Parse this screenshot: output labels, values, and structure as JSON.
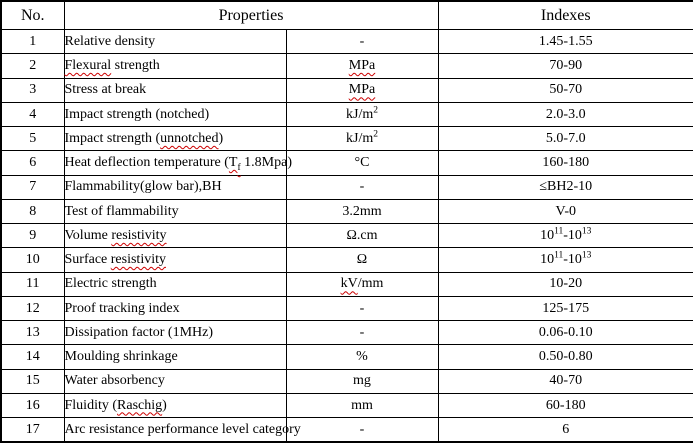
{
  "table": {
    "headers": {
      "no": "No.",
      "properties": "Properties",
      "indexes": "Indexes"
    },
    "rows": [
      {
        "no": "1",
        "property": [
          {
            "t": "Relative density"
          }
        ],
        "unit": [
          {
            "t": "-"
          }
        ],
        "index": [
          {
            "t": "1.45-1.55"
          }
        ]
      },
      {
        "no": "2",
        "property": [
          {
            "t": "Flexural",
            "s": "sq"
          },
          {
            "t": " strength"
          }
        ],
        "unit": [
          {
            "t": "MPa",
            "s": "sq"
          }
        ],
        "index": [
          {
            "t": "70-90"
          }
        ]
      },
      {
        "no": "3",
        "property": [
          {
            "t": "Stress at break"
          }
        ],
        "unit": [
          {
            "t": "MPa",
            "s": "sq"
          }
        ],
        "index": [
          {
            "t": "50-70"
          }
        ]
      },
      {
        "no": "4",
        "property": [
          {
            "t": "Impact strength (notched)"
          }
        ],
        "unit": [
          {
            "t": "kJ/m"
          },
          {
            "t": "2",
            "s": "sup"
          }
        ],
        "index": [
          {
            "t": "2.0-3.0"
          }
        ]
      },
      {
        "no": "5",
        "property": [
          {
            "t": "Impact strength ("
          },
          {
            "t": "unnotched",
            "s": "sq"
          },
          {
            "t": ")"
          }
        ],
        "unit": [
          {
            "t": "kJ/m"
          },
          {
            "t": "2",
            "s": "sup"
          }
        ],
        "index": [
          {
            "t": "5.0-7.0"
          }
        ]
      },
      {
        "no": "6",
        "property": [
          {
            "t": "Heat deflection temperature ("
          },
          {
            "t": "T",
            "s": "sq"
          },
          {
            "t": "f",
            "s": "sub sq"
          },
          {
            "t": " 1.8Mpa)"
          }
        ],
        "unit": [
          {
            "t": "°C"
          }
        ],
        "index": [
          {
            "t": "160-180"
          }
        ]
      },
      {
        "no": "7",
        "property": [
          {
            "t": "Flammability(glow bar),BH"
          }
        ],
        "unit": [
          {
            "t": "-"
          }
        ],
        "index": [
          {
            "t": "≤BH2-10"
          }
        ]
      },
      {
        "no": "8",
        "property": [
          {
            "t": "Test of flammability"
          }
        ],
        "unit": [
          {
            "t": "3.2mm"
          }
        ],
        "index": [
          {
            "t": "V-0"
          }
        ]
      },
      {
        "no": "9",
        "property": [
          {
            "t": "Volume "
          },
          {
            "t": "resistivity",
            "s": "sq"
          }
        ],
        "unit": [
          {
            "t": "Ω.cm"
          }
        ],
        "index": [
          {
            "t": "10"
          },
          {
            "t": "11",
            "s": "sup"
          },
          {
            "t": "-10"
          },
          {
            "t": "13",
            "s": "sup"
          }
        ]
      },
      {
        "no": "10",
        "property": [
          {
            "t": "Surface "
          },
          {
            "t": "resistivity",
            "s": "sq"
          }
        ],
        "unit": [
          {
            "t": "Ω"
          }
        ],
        "index": [
          {
            "t": "10"
          },
          {
            "t": "11",
            "s": "sup"
          },
          {
            "t": "-10"
          },
          {
            "t": "13",
            "s": "sup"
          }
        ]
      },
      {
        "no": "11",
        "property": [
          {
            "t": "Electric strength"
          }
        ],
        "unit": [
          {
            "t": "kV",
            "s": "sq"
          },
          {
            "t": "/mm"
          }
        ],
        "index": [
          {
            "t": "10-20"
          }
        ]
      },
      {
        "no": "12",
        "property": [
          {
            "t": "Proof tracking index"
          }
        ],
        "unit": [
          {
            "t": "-"
          }
        ],
        "index": [
          {
            "t": "125-175"
          }
        ]
      },
      {
        "no": "13",
        "property": [
          {
            "t": "Dissipation factor (1MHz)"
          }
        ],
        "unit": [
          {
            "t": "-"
          }
        ],
        "index": [
          {
            "t": "0.06-0.10"
          }
        ]
      },
      {
        "no": "14",
        "property": [
          {
            "t": "Moulding shrinkage"
          }
        ],
        "unit": [
          {
            "t": "%"
          }
        ],
        "index": [
          {
            "t": "0.50-0.80"
          }
        ]
      },
      {
        "no": "15",
        "property": [
          {
            "t": "Water absorbency"
          }
        ],
        "unit": [
          {
            "t": "mg"
          }
        ],
        "index": [
          {
            "t": "40-70"
          }
        ]
      },
      {
        "no": "16",
        "property": [
          {
            "t": "Fluidity ("
          },
          {
            "t": "Raschig",
            "s": "sq"
          },
          {
            "t": ")"
          }
        ],
        "unit": [
          {
            "t": "mm"
          }
        ],
        "index": [
          {
            "t": "60-180"
          }
        ]
      },
      {
        "no": "17",
        "property": [
          {
            "t": "Arc resistance performance level category"
          }
        ],
        "unit": [
          {
            "t": "-"
          }
        ],
        "index": [
          {
            "t": "6"
          }
        ]
      }
    ],
    "colors": {
      "text": "#000000",
      "border": "#000000",
      "background": "#ffffff",
      "squiggle": "#cc0000"
    }
  }
}
